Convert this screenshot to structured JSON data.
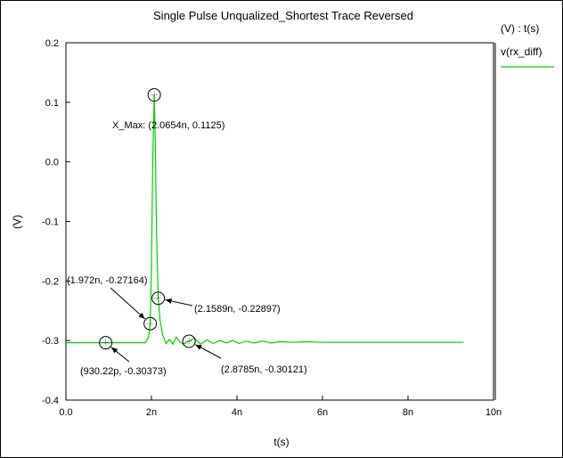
{
  "chart_data": {
    "type": "line",
    "title": "Single Pulse Unqualized_Shortest Trace Reversed",
    "xlabel": "t(s)",
    "ylabel": "(V)",
    "xlim": [
      0,
      1e-08
    ],
    "ylim": [
      -0.4,
      0.2
    ],
    "grid": false,
    "x_ticks": [
      {
        "value": 0,
        "label": "0.0"
      },
      {
        "value": 2e-09,
        "label": "2n"
      },
      {
        "value": 4e-09,
        "label": "4n"
      },
      {
        "value": 6e-09,
        "label": "6n"
      },
      {
        "value": 8e-09,
        "label": "8n"
      },
      {
        "value": 1e-08,
        "label": "10n"
      }
    ],
    "y_ticks": [
      {
        "value": 0.2,
        "label": "0.2"
      },
      {
        "value": 0.1,
        "label": "0.1"
      },
      {
        "value": 0.0,
        "label": "0.0"
      },
      {
        "value": -0.1,
        "label": "-0.1"
      },
      {
        "value": -0.2,
        "label": "-0.2"
      },
      {
        "value": -0.3,
        "label": "-0.3"
      },
      {
        "value": -0.4,
        "label": "-0.4"
      }
    ],
    "legend": {
      "placement": "right",
      "header": "(V) : t(s)",
      "entries": [
        {
          "name": "v(rx_diff)",
          "color": "#00d000"
        }
      ]
    },
    "series": [
      {
        "name": "v(rx_diff)",
        "color": "#00d000",
        "x": [
          0,
          9.3022e-10,
          1.85e-09,
          1.93e-09,
          1.972e-09,
          2e-09,
          2.03e-09,
          2.0654e-09,
          2.09e-09,
          2.12e-09,
          2.1589e-09,
          2.2e-09,
          2.26e-09,
          2.34e-09,
          2.42e-09,
          2.5e-09,
          2.58e-09,
          2.66e-09,
          2.74e-09,
          2.8785e-09,
          3e-09,
          3.15e-09,
          3.3e-09,
          3.45e-09,
          3.6e-09,
          3.75e-09,
          3.9e-09,
          4.05e-09,
          4.2e-09,
          4.4e-09,
          4.6e-09,
          4.8e-09,
          5e-09,
          5.3e-09,
          5.6e-09,
          6e-09,
          6.5e-09,
          7e-09,
          7.5e-09,
          8e-09,
          8.5e-09,
          9e-09,
          9.3e-09
        ],
        "y": [
          -0.30373,
          -0.30373,
          -0.30373,
          -0.2951,
          -0.27164,
          -0.18,
          0.0,
          0.1125,
          0.03,
          -0.12,
          -0.22897,
          -0.265,
          -0.29,
          -0.305,
          -0.298,
          -0.306,
          -0.294,
          -0.302,
          -0.306,
          -0.30121,
          -0.296,
          -0.306,
          -0.299,
          -0.305,
          -0.3,
          -0.304,
          -0.3,
          -0.305,
          -0.301,
          -0.304,
          -0.301,
          -0.304,
          -0.302,
          -0.303,
          -0.302,
          -0.303,
          -0.303,
          -0.303,
          -0.303,
          -0.303,
          -0.303,
          -0.303,
          -0.303
        ]
      }
    ],
    "annotations": [
      {
        "label": "X_Max: (2.0654n, 0.1125)",
        "x": 2.0654e-09,
        "y": 0.1125
      },
      {
        "label": "(1.972n, -0.27164)",
        "x": 1.972e-09,
        "y": -0.27164
      },
      {
        "label": "(2.1589n, -0.22897)",
        "x": 2.1589e-09,
        "y": -0.22897
      },
      {
        "label": "(2.8785n, -0.30121)",
        "x": 2.8785e-09,
        "y": -0.30121
      },
      {
        "label": "(930.22p, -0.30373)",
        "x": 9.3022e-10,
        "y": -0.30373
      }
    ]
  }
}
